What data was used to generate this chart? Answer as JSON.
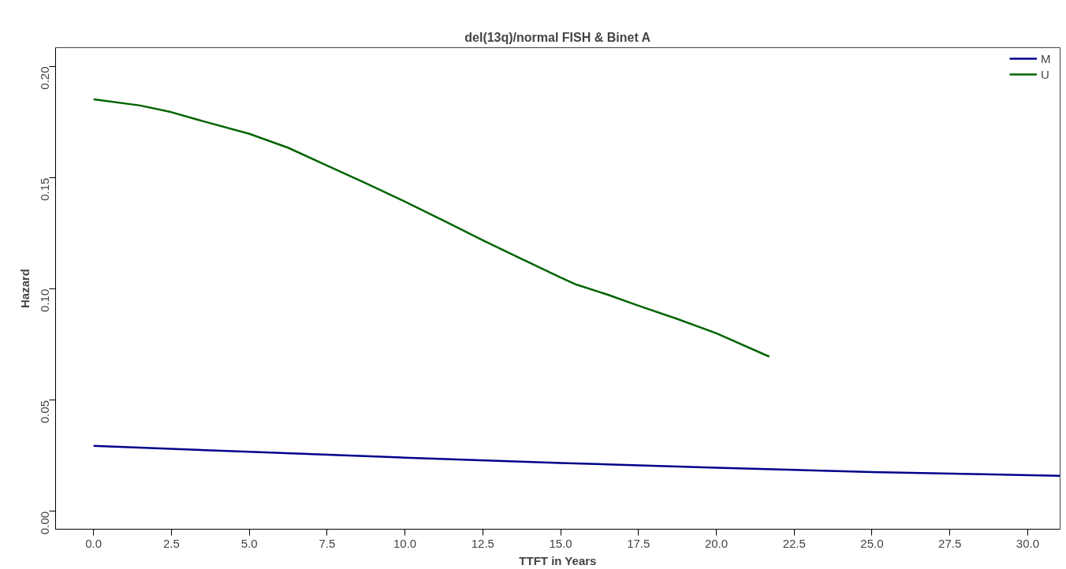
{
  "chart_data": {
    "type": "line",
    "title": "del(13q)/normal FISH & Binet A",
    "xlabel": "TTFT in Years",
    "ylabel": "Hazard",
    "xlim": [
      -1.22,
      31.04
    ],
    "ylim": [
      -0.008,
      0.2085
    ],
    "xticks": [
      {
        "value": 0,
        "label": "0.0"
      },
      {
        "value": 2.5,
        "label": "2.5"
      },
      {
        "value": 5,
        "label": "5.0"
      },
      {
        "value": 7.5,
        "label": "7.5"
      },
      {
        "value": 10,
        "label": "10.0"
      },
      {
        "value": 12.5,
        "label": "12.5"
      },
      {
        "value": 15,
        "label": "15.0"
      },
      {
        "value": 17.5,
        "label": "17.5"
      },
      {
        "value": 20,
        "label": "20.0"
      },
      {
        "value": 22.5,
        "label": "22.5"
      },
      {
        "value": 25,
        "label": "25.0"
      },
      {
        "value": 27.5,
        "label": "27.5"
      },
      {
        "value": 30,
        "label": "30.0"
      }
    ],
    "yticks": [
      {
        "value": 0,
        "label": "0.00"
      },
      {
        "value": 0.05,
        "label": "0.05"
      },
      {
        "value": 0.1,
        "label": "0.10"
      },
      {
        "value": 0.15,
        "label": "0.15"
      },
      {
        "value": 0.2,
        "label": "0.20"
      }
    ],
    "grid": false,
    "legend": "top right",
    "line_style": "solid",
    "series": [
      {
        "name": "M",
        "color": "#00008b",
        "x": [
          0,
          5,
          10,
          15,
          20,
          25,
          31.04
        ],
        "values": [
          0.0295,
          0.0268,
          0.0242,
          0.0218,
          0.0196,
          0.0177,
          0.016
        ]
      },
      {
        "name": "U",
        "color": "#006400",
        "x": [
          0,
          1.5,
          2.5,
          3.5,
          5,
          6.25,
          7.5,
          8.75,
          10,
          11.25,
          12.5,
          13.75,
          15,
          15.5,
          16.5,
          17.5,
          18.75,
          20,
          21.7
        ],
        "values": [
          0.1853,
          0.1825,
          0.1795,
          0.1755,
          0.1698,
          0.1635,
          0.1555,
          0.1475,
          0.1393,
          0.1307,
          0.1219,
          0.1135,
          0.1052,
          0.102,
          0.0975,
          0.0925,
          0.0865,
          0.0801,
          0.0696
        ]
      }
    ]
  }
}
